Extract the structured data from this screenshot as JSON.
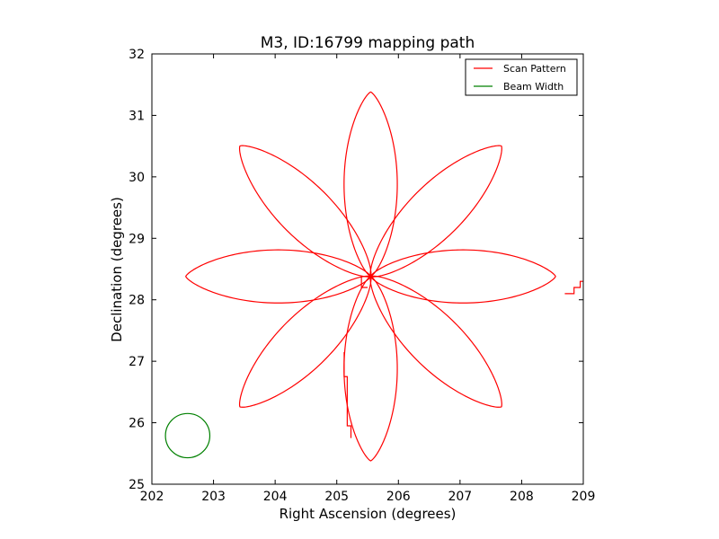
{
  "chart_data": {
    "type": "line",
    "title": "M3, ID:16799 mapping path",
    "xlabel": "Right Ascension (degrees)",
    "ylabel": "Declination (degrees)",
    "xlim": [
      202,
      209
    ],
    "ylim": [
      25,
      32
    ],
    "xticks": [
      202,
      203,
      204,
      205,
      206,
      207,
      208,
      209
    ],
    "yticks": [
      25,
      26,
      27,
      28,
      29,
      30,
      31,
      32
    ],
    "grid": false,
    "legend": {
      "placement": "top-right",
      "entries": [
        {
          "name": "Scan Pattern",
          "color": "#ff0000"
        },
        {
          "name": "Beam Width",
          "color": "#008000"
        }
      ]
    },
    "series": [
      {
        "name": "Scan Pattern",
        "color": "#ff0000",
        "kind": "rose",
        "center": [
          205.55,
          28.38
        ],
        "petals": 8,
        "petal_length": [
          3.0,
          3.0
        ],
        "petal_width": 0.48,
        "angle_offset_deg": 90,
        "artifacts": [
          {
            "x": [
              205.4,
              205.4,
              205.5
            ],
            "y": [
              28.38,
              28.2,
              28.2
            ]
          },
          {
            "x": [
              205.12,
              205.12,
              205.17,
              205.17,
              205.23,
              205.23
            ],
            "y": [
              27.15,
              26.75,
              26.75,
              25.95,
              25.95,
              25.75
            ]
          },
          {
            "x": [
              208.7,
              208.85,
              208.85,
              208.95,
              208.95,
              209.0
            ],
            "y": [
              28.1,
              28.1,
              28.2,
              28.2,
              28.3,
              28.3
            ]
          }
        ]
      },
      {
        "name": "Beam Width",
        "color": "#008000",
        "kind": "circle",
        "center": [
          202.58,
          25.79
        ],
        "radius": 0.36
      }
    ]
  }
}
